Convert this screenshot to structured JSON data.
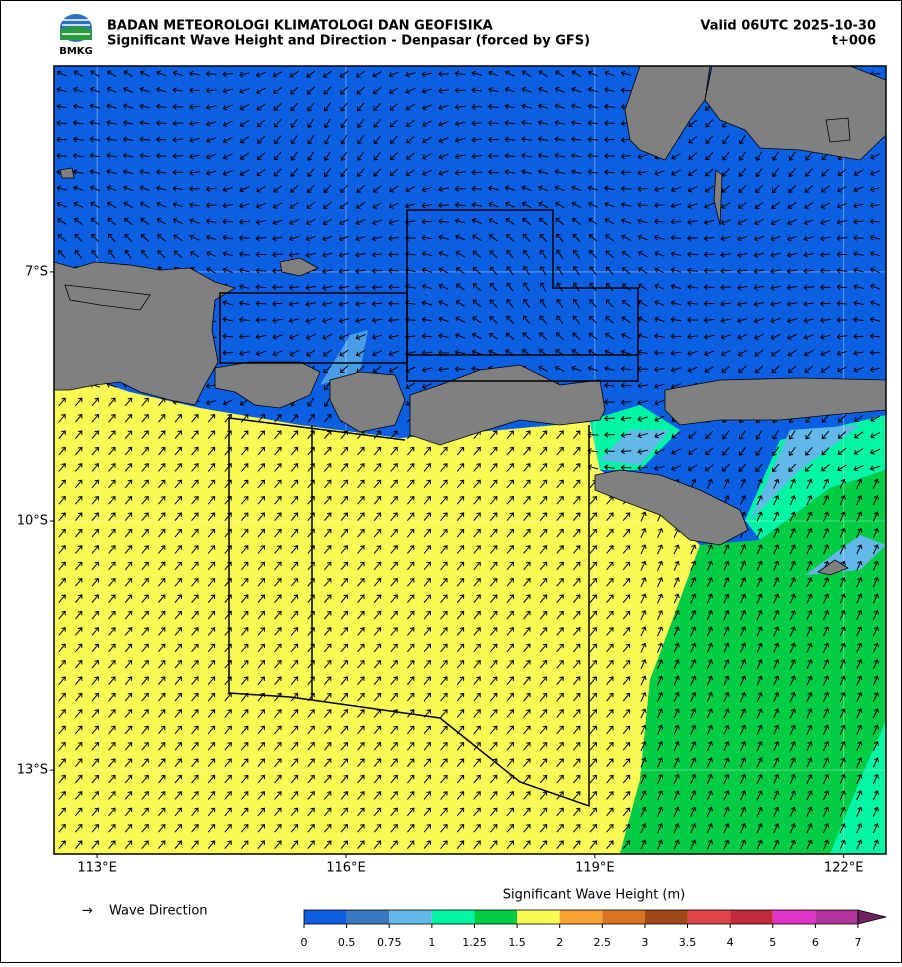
{
  "header": {
    "agency": "BADAN METEOROLOGI KLIMATOLOGI DAN GEOFISIKA",
    "title": "Significant Wave Height and Direction - Denpasar (forced by GFS)",
    "valid": "Valid 06UTC 2025-10-30",
    "step": "t+006",
    "logo": "BMKG"
  },
  "map": {
    "xlim": [
      112.48,
      122.51
    ],
    "ylim": [
      -14.01,
      -4.52
    ],
    "xticks": [
      {
        "value": 113,
        "label": "113°E"
      },
      {
        "value": 116,
        "label": "116°E"
      },
      {
        "value": 119,
        "label": "119°E"
      },
      {
        "value": 122,
        "label": "122°E"
      }
    ],
    "yticks": [
      {
        "value": -7,
        "label": "7°S"
      },
      {
        "value": -10,
        "label": "10°S"
      },
      {
        "value": -13,
        "label": "13°S"
      }
    ]
  },
  "legend": {
    "symbol": "→",
    "label": "Wave Direction"
  },
  "colorbar": {
    "label": "Significant Wave Height (m)",
    "ticks": [
      0,
      0.5,
      0.75,
      1,
      1.25,
      1.5,
      2,
      2.5,
      3,
      3.5,
      4,
      5,
      6,
      7
    ],
    "colors": [
      "#0b5fe2",
      "#3a78c0",
      "#62b8e8",
      "#00f5a5",
      "#00cc44",
      "#fafa55",
      "#f8a232",
      "#d87422",
      "#a04818",
      "#e04444",
      "#c02a3a",
      "#e034c8",
      "#b0349c",
      "#702060"
    ]
  }
}
